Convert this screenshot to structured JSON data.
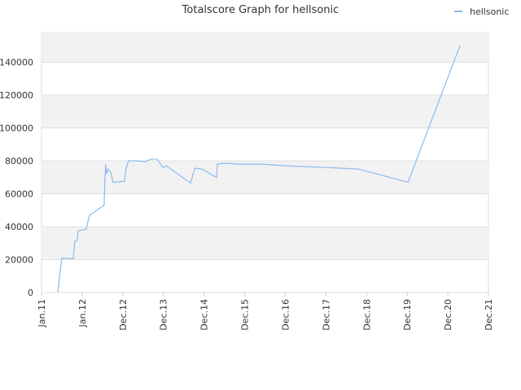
{
  "chart_data": {
    "type": "line",
    "title": "Totalscore Graph for hellsonic",
    "legend": "top-right",
    "grid": true,
    "xlim": [
      0,
      11
    ],
    "xticks": [
      {
        "value": 0,
        "label": "Jan.11"
      },
      {
        "value": 1,
        "label": "Jan.12"
      },
      {
        "value": 2,
        "label": "Dec.12"
      },
      {
        "value": 3,
        "label": "Dec.13"
      },
      {
        "value": 4,
        "label": "Dec.14"
      },
      {
        "value": 5,
        "label": "Dec.15"
      },
      {
        "value": 6,
        "label": "Dec.16"
      },
      {
        "value": 7,
        "label": "Dec.17"
      },
      {
        "value": 8,
        "label": "Dec.18"
      },
      {
        "value": 9,
        "label": "Dec.19"
      },
      {
        "value": 10,
        "label": "Dec.20"
      },
      {
        "value": 11,
        "label": "Dec.21"
      }
    ],
    "ylim": [
      0,
      158000
    ],
    "yticks": [
      0,
      20000,
      40000,
      60000,
      80000,
      100000,
      120000,
      140000
    ],
    "x": [
      0.4,
      0.5,
      0.78,
      0.82,
      0.88,
      0.9,
      1.1,
      1.18,
      1.54,
      1.56,
      1.58,
      1.6,
      1.64,
      1.7,
      1.76,
      2.04,
      2.08,
      2.14,
      2.34,
      2.55,
      2.69,
      2.85,
      2.99,
      3.07,
      3.67,
      3.77,
      3.95,
      4.31,
      4.33,
      4.49,
      4.89,
      5.39,
      5.99,
      6.99,
      7.8,
      9.02,
      10.3
    ],
    "series": [
      {
        "name": "hellsonic",
        "color": "#88bbee",
        "values": [
          0,
          21000,
          20500,
          31000,
          32000,
          37500,
          38500,
          47000,
          53000,
          69000,
          78000,
          72000,
          75000,
          73000,
          67000,
          67500,
          75000,
          80000,
          80000,
          79500,
          81000,
          81000,
          76000,
          77000,
          66500,
          75500,
          75000,
          70000,
          78000,
          78500,
          78000,
          78000,
          77000,
          76000,
          75000,
          67000,
          150000
        ]
      }
    ]
  }
}
